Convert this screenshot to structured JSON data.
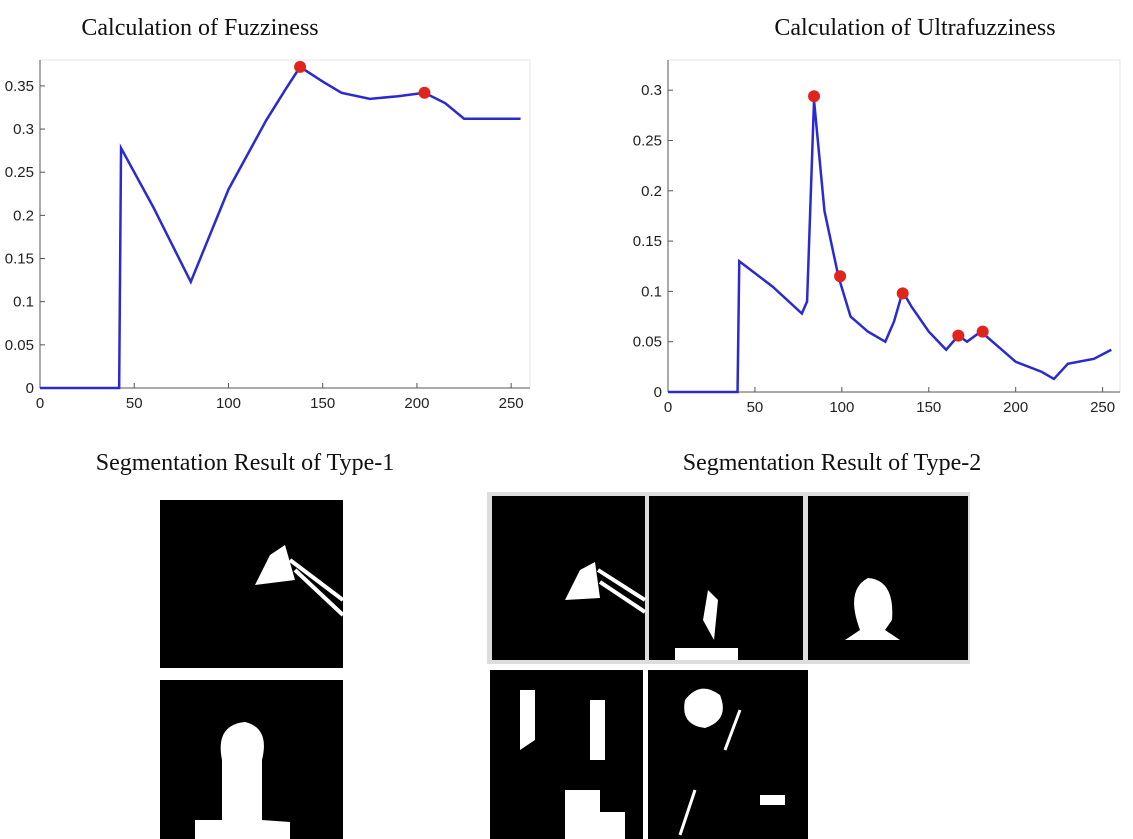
{
  "chart_data": [
    {
      "type": "line",
      "title": "Calculation of Fuzziness",
      "x": [
        0,
        42,
        43,
        60,
        80,
        100,
        120,
        130,
        138,
        150,
        160,
        175,
        190,
        204,
        215,
        225,
        240,
        255
      ],
      "values": [
        0,
        0,
        0.278,
        0.21,
        0.123,
        0.23,
        0.31,
        0.345,
        0.372,
        0.355,
        0.342,
        0.335,
        0.338,
        0.342,
        0.33,
        0.312,
        0.312,
        0.312
      ],
      "color": "#2a2ad0",
      "peaks": {
        "x": [
          138,
          204
        ],
        "values": [
          0.372,
          0.342
        ],
        "color": "#e0261c"
      },
      "xlim": [
        0,
        260
      ],
      "ylim": [
        0,
        0.38
      ],
      "xticks": [
        0,
        50,
        100,
        150,
        200,
        250
      ],
      "yticks": [
        0,
        0.05,
        0.1,
        0.15,
        0.2,
        0.25,
        0.3,
        0.35
      ]
    },
    {
      "type": "line",
      "title": "Calculation of Ultrafuzziness",
      "x": [
        0,
        40,
        41,
        60,
        77,
        80,
        84,
        90,
        98,
        105,
        115,
        125,
        130,
        135,
        140,
        150,
        160,
        167,
        172,
        180,
        190,
        200,
        215,
        222,
        230,
        245,
        255
      ],
      "values": [
        0,
        0,
        0.13,
        0.105,
        0.078,
        0.09,
        0.29,
        0.18,
        0.115,
        0.075,
        0.06,
        0.05,
        0.07,
        0.1,
        0.085,
        0.06,
        0.042,
        0.056,
        0.05,
        0.06,
        0.045,
        0.03,
        0.02,
        0.013,
        0.028,
        0.033,
        0.042
      ],
      "color": "#2a2ad0",
      "peaks": {
        "x": [
          84,
          99,
          135,
          167,
          181
        ],
        "values": [
          0.294,
          0.115,
          0.098,
          0.056,
          0.06
        ],
        "color": "#e0261c"
      },
      "xlim": [
        0,
        260
      ],
      "ylim": [
        0,
        0.33
      ],
      "xticks": [
        0,
        50,
        100,
        150,
        200,
        250
      ],
      "yticks": [
        0,
        0.05,
        0.1,
        0.15,
        0.2,
        0.25,
        0.3
      ]
    }
  ],
  "segmentation": {
    "type1_title": "Segmentation Result of Type-1",
    "type2_title": "Segmentation Result of Type-2"
  }
}
